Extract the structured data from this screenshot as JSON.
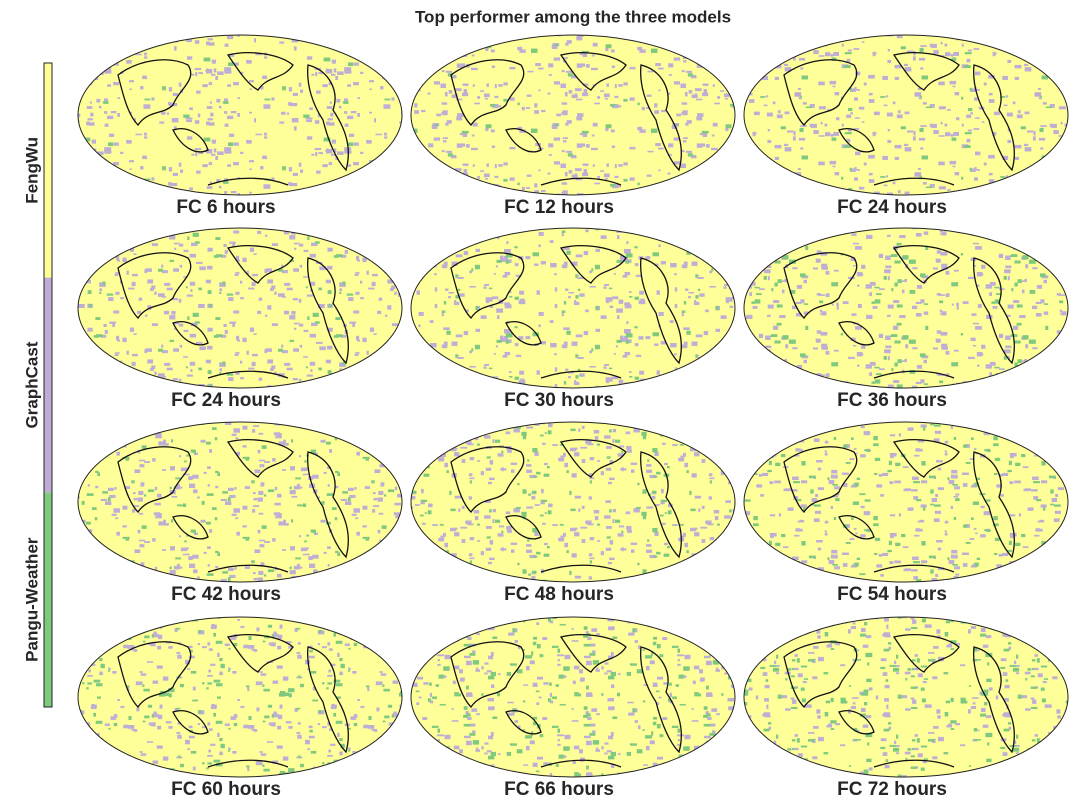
{
  "title": "Top performer among the three models",
  "legend": {
    "items": [
      {
        "label": "FengWu",
        "color": "#ffff99"
      },
      {
        "label": "GraphCast",
        "color": "#beaed4"
      },
      {
        "label": "Pangu-Weather",
        "color": "#7fc97f"
      }
    ]
  },
  "panels": [
    {
      "label": "FC 6 hours"
    },
    {
      "label": "FC 12 hours"
    },
    {
      "label": "FC 24 hours"
    },
    {
      "label": "FC 24 hours"
    },
    {
      "label": "FC 30 hours"
    },
    {
      "label": "FC 36 hours"
    },
    {
      "label": "FC 42 hours"
    },
    {
      "label": "FC 48 hours"
    },
    {
      "label": "FC 54 hours"
    },
    {
      "label": "FC 60 hours"
    },
    {
      "label": "FC 66 hours"
    },
    {
      "label": "FC 72 hours"
    }
  ]
}
